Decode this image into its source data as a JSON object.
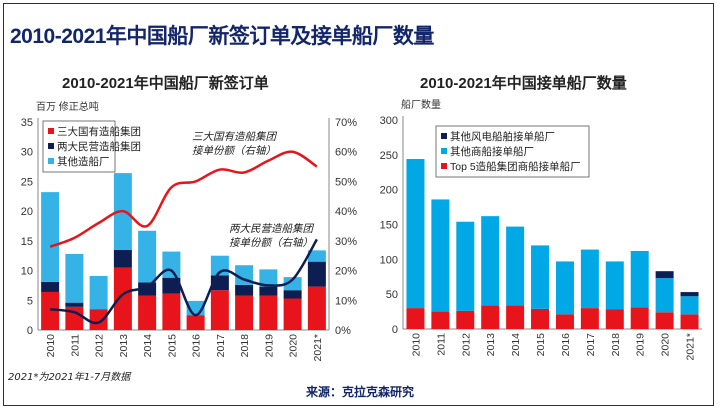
{
  "title": "2010-2021年中国船厂新签订单及接单船厂数量",
  "footnote": "2021*为2021年1-7月数据",
  "source": "来源：克拉克森研究",
  "colors": {
    "red": "#e8141b",
    "navy": "#0d1f52",
    "lightblue": "#35b3e6",
    "frame": "#1b2f6b"
  },
  "chart_data": [
    {
      "type": "bar",
      "stacked": true,
      "title": "2010-2021年中国船厂新签订单",
      "ylabel": "百万 修正总吨",
      "categories": [
        "2010",
        "2011",
        "2012",
        "2013",
        "2014",
        "2015",
        "2016",
        "2017",
        "2018",
        "2019",
        "2020",
        "2021*"
      ],
      "ylim": [
        0,
        35
      ],
      "yticks": [
        "0",
        "5",
        "10",
        "15",
        "20",
        "25",
        "30",
        "35"
      ],
      "y2lim": [
        0,
        70
      ],
      "y2ticks": [
        "0%",
        "10%",
        "20%",
        "30%",
        "40%",
        "50%",
        "60%",
        "70%"
      ],
      "legend_position": "top-left",
      "series": [
        {
          "name": "三大国有造船集团",
          "color": "#e8141b",
          "values": [
            6.4,
            3.9,
            3.4,
            10.5,
            5.8,
            6.1,
            2.5,
            6.7,
            5.8,
            5.8,
            5.3,
            7.3
          ]
        },
        {
          "name": "两大民营造船集团",
          "color": "#0d1f52",
          "values": [
            1.7,
            0.7,
            0.1,
            3.0,
            2.2,
            2.7,
            0.0,
            2.5,
            1.8,
            1.5,
            1.4,
            4.2
          ]
        },
        {
          "name": "其他造船厂",
          "color": "#35b3e6",
          "values": [
            15.1,
            8.2,
            5.6,
            12.9,
            8.7,
            4.4,
            2.4,
            3.3,
            3.3,
            2.9,
            2.2,
            1.9
          ]
        }
      ],
      "lines": [
        {
          "label": [
            "三大国有造船集团",
            "接单份额（右轴）"
          ],
          "axis": "right",
          "color": "#e8141b",
          "values": [
            28,
            31,
            36,
            40,
            35,
            48,
            50,
            54,
            53,
            57,
            60,
            55
          ]
        },
        {
          "label": [
            "两大民营造船集团",
            "接单份额（右轴）"
          ],
          "axis": "right",
          "color": "#0d1f52",
          "values": [
            7,
            6,
            2.5,
            12,
            14.5,
            20,
            5,
            19.5,
            17,
            15,
            17,
            30.5
          ]
        }
      ]
    },
    {
      "type": "bar",
      "stacked": true,
      "title": "2010-2021年中国接单船厂数量",
      "ylabel": "船厂数量",
      "categories": [
        "2010",
        "2011",
        "2012",
        "2013",
        "2014",
        "2015",
        "2016",
        "2017",
        "2018",
        "2019",
        "2020",
        "2021*"
      ],
      "ylim": [
        0,
        300
      ],
      "yticks": [
        "0",
        "50",
        "100",
        "150",
        "200",
        "250",
        "300"
      ],
      "legend_position": "top-center",
      "legend_order": [
        "其他风电船舶接单船厂",
        "其他商船接单船厂",
        "Top 5造船集团商船接单船厂"
      ],
      "series": [
        {
          "name": "Top 5造船集团商船接单船厂",
          "color": "#e8141b",
          "values": [
            30,
            25,
            26,
            34,
            34,
            29,
            21,
            30,
            28,
            31,
            24,
            21
          ]
        },
        {
          "name": "其他商船接单船厂",
          "color": "#00a9e6",
          "values": [
            214,
            161,
            128,
            128,
            113,
            91,
            76,
            84,
            69,
            81,
            49,
            26
          ]
        },
        {
          "name": "其他风电船舶接单船厂",
          "color": "#0d1f52",
          "values": [
            0,
            0,
            0,
            0,
            0,
            0,
            0,
            0,
            0,
            0,
            10,
            6
          ]
        }
      ]
    }
  ]
}
